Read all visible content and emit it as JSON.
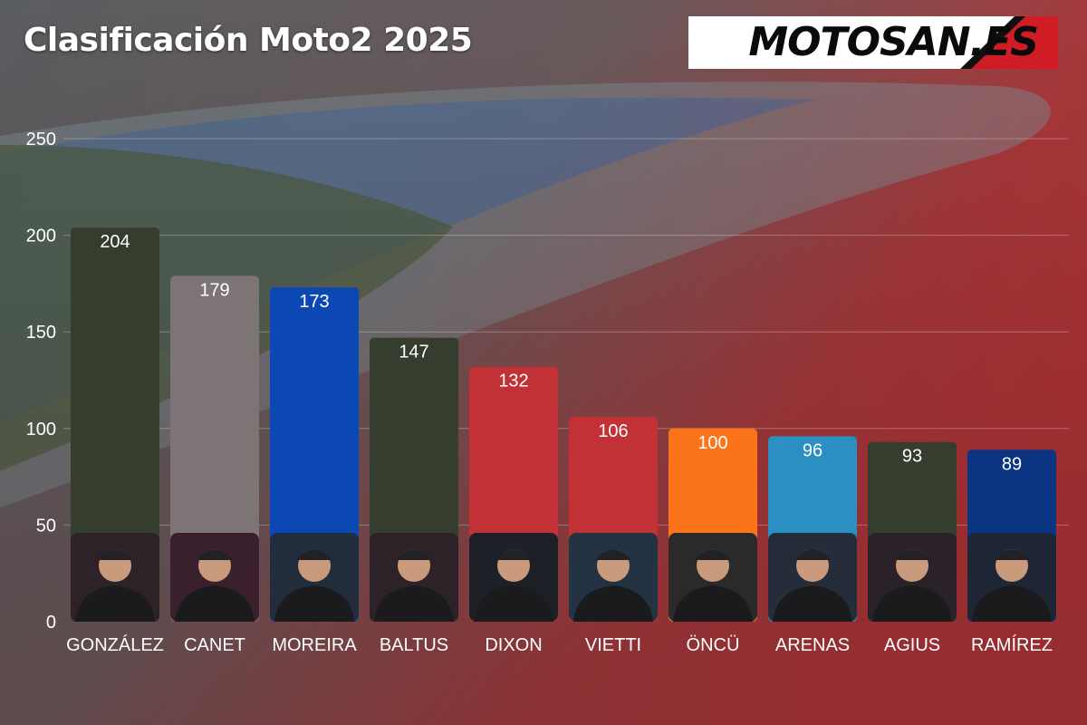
{
  "header": {
    "title": "Clasificación Moto2 2025",
    "logo_text": "MOTOSAN.ES"
  },
  "colors": {
    "background_gray": "#555a5e",
    "background_red": "#b8383c",
    "track_blue": "#2e68b8",
    "logo_red": "#d01c24"
  },
  "chart_data": {
    "type": "bar",
    "title": "Clasificación Moto2 2025",
    "xlabel": "",
    "ylabel": "",
    "ylim": [
      0,
      250
    ],
    "yticks": [
      0,
      50,
      100,
      150,
      200,
      250
    ],
    "grid": true,
    "categories": [
      "GONZÁLEZ",
      "CANET",
      "MOREIRA",
      "BALTUS",
      "DIXON",
      "VIETTI",
      "ÖNCÜ",
      "ARENAS",
      "AGIUS",
      "RAMÍREZ"
    ],
    "values": [
      204,
      179,
      173,
      147,
      132,
      106,
      100,
      96,
      93,
      89
    ],
    "bar_colors": [
      "#353d2f",
      "#7d7475",
      "#0c48b4",
      "#353d2f",
      "#c23136",
      "#c23136",
      "#fb741a",
      "#2b8fc2",
      "#353d2f",
      "#0b3582"
    ],
    "portrait_colors": [
      "#2c2228",
      "#3a1f2c",
      "#212c3c",
      "#2c2228",
      "#1e2028",
      "#243344",
      "#2a2a2a",
      "#262d3a",
      "#2a2228",
      "#1e2636"
    ]
  }
}
